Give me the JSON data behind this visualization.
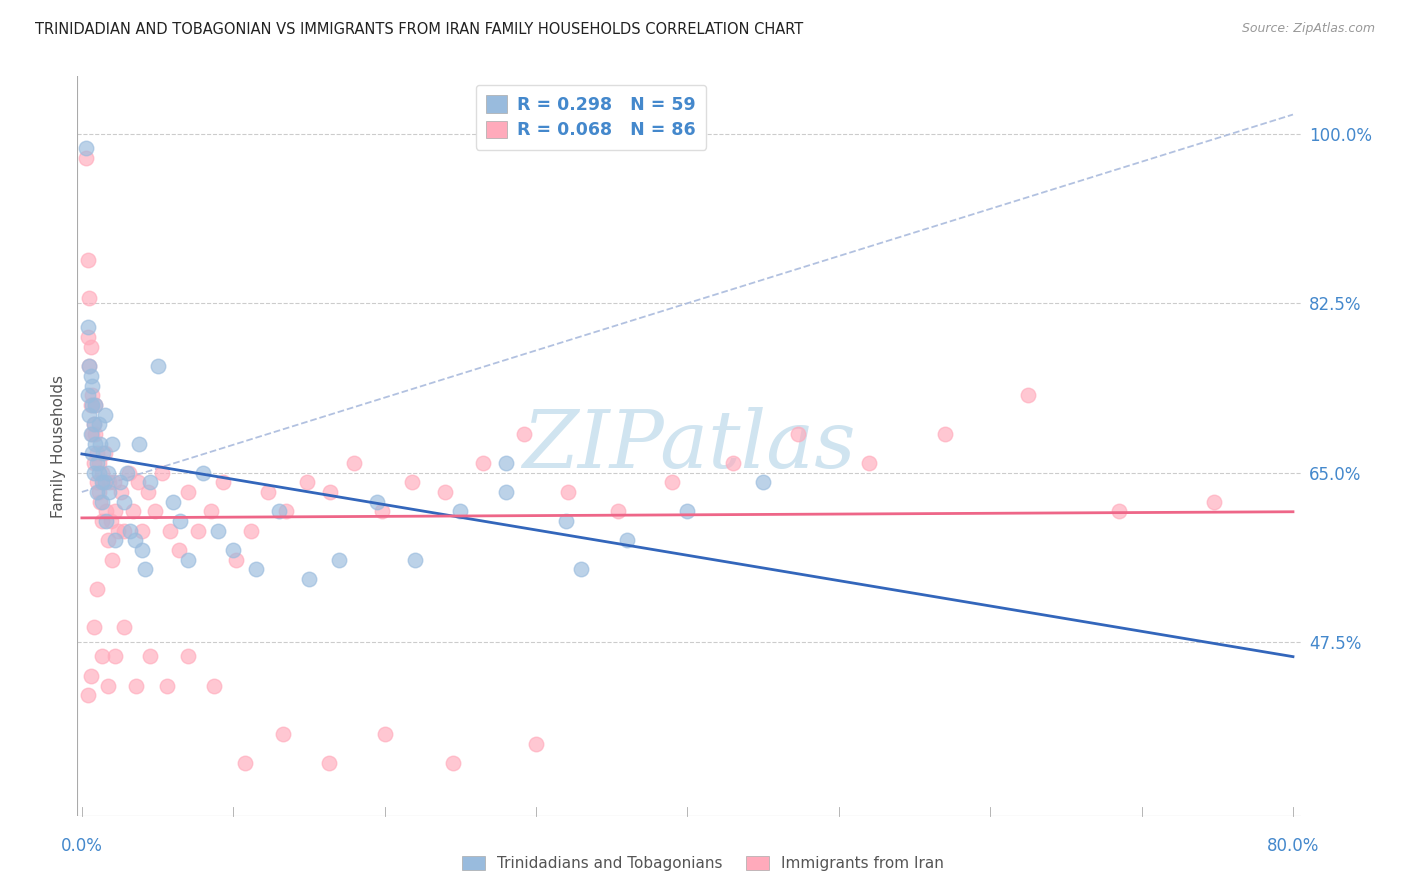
{
  "title": "TRINIDADIAN AND TOBAGONIAN VS IMMIGRANTS FROM IRAN FAMILY HOUSEHOLDS CORRELATION CHART",
  "source": "Source: ZipAtlas.com",
  "ylabel": "Family Households",
  "blue_color": "#99BBDD",
  "pink_color": "#FFAABB",
  "blue_line_color": "#3366BB",
  "pink_line_color": "#EE6688",
  "dashed_line_color": "#AABBDD",
  "background_color": "#FFFFFF",
  "tick_color": "#4488CC",
  "label_color": "#555555",
  "watermark_color": "#D0E4F0",
  "watermark": "ZIPatlas",
  "blue_r": 0.298,
  "blue_n": 59,
  "pink_r": 0.068,
  "pink_n": 86,
  "xlim_min": -0.003,
  "xlim_max": 0.805,
  "ylim_min": 0.295,
  "ylim_max": 1.06,
  "y_tick_positions": [
    0.475,
    0.65,
    0.825,
    1.0
  ],
  "y_tick_labels": [
    "47.5%",
    "65.0%",
    "82.5%",
    "100.0%"
  ],
  "bottom_legend_blue": "Trinidadians and Tobagonians",
  "bottom_legend_pink": "Immigrants from Iran",
  "blue_x": [
    0.003,
    0.004,
    0.004,
    0.005,
    0.005,
    0.006,
    0.006,
    0.007,
    0.007,
    0.007,
    0.008,
    0.008,
    0.009,
    0.009,
    0.01,
    0.01,
    0.011,
    0.011,
    0.012,
    0.013,
    0.013,
    0.014,
    0.015,
    0.015,
    0.016,
    0.017,
    0.018,
    0.02,
    0.022,
    0.025,
    0.028,
    0.03,
    0.032,
    0.035,
    0.038,
    0.04,
    0.042,
    0.045,
    0.05,
    0.06,
    0.065,
    0.07,
    0.08,
    0.09,
    0.1,
    0.115,
    0.13,
    0.15,
    0.17,
    0.195,
    0.22,
    0.25,
    0.28,
    0.32,
    0.36,
    0.4,
    0.45,
    0.33,
    0.28
  ],
  "blue_y": [
    0.985,
    0.73,
    0.8,
    0.76,
    0.71,
    0.75,
    0.69,
    0.72,
    0.67,
    0.74,
    0.7,
    0.65,
    0.68,
    0.72,
    0.66,
    0.63,
    0.7,
    0.65,
    0.68,
    0.64,
    0.62,
    0.67,
    0.71,
    0.64,
    0.6,
    0.65,
    0.63,
    0.68,
    0.58,
    0.64,
    0.62,
    0.65,
    0.59,
    0.58,
    0.68,
    0.57,
    0.55,
    0.64,
    0.76,
    0.62,
    0.6,
    0.56,
    0.65,
    0.59,
    0.57,
    0.55,
    0.61,
    0.54,
    0.56,
    0.62,
    0.56,
    0.61,
    0.66,
    0.6,
    0.58,
    0.61,
    0.64,
    0.55,
    0.63
  ],
  "pink_x": [
    0.003,
    0.004,
    0.004,
    0.005,
    0.005,
    0.006,
    0.006,
    0.007,
    0.007,
    0.008,
    0.008,
    0.009,
    0.009,
    0.01,
    0.01,
    0.011,
    0.011,
    0.012,
    0.013,
    0.013,
    0.014,
    0.015,
    0.016,
    0.017,
    0.018,
    0.019,
    0.02,
    0.021,
    0.022,
    0.024,
    0.026,
    0.028,
    0.031,
    0.034,
    0.037,
    0.04,
    0.044,
    0.048,
    0.053,
    0.058,
    0.064,
    0.07,
    0.077,
    0.085,
    0.093,
    0.102,
    0.112,
    0.123,
    0.135,
    0.149,
    0.164,
    0.18,
    0.198,
    0.218,
    0.24,
    0.265,
    0.292,
    0.321,
    0.354,
    0.39,
    0.43,
    0.473,
    0.52,
    0.57,
    0.625,
    0.685,
    0.748,
    0.004,
    0.006,
    0.008,
    0.01,
    0.013,
    0.017,
    0.022,
    0.028,
    0.036,
    0.045,
    0.056,
    0.07,
    0.087,
    0.108,
    0.133,
    0.163,
    0.2,
    0.245,
    0.3
  ],
  "pink_y": [
    0.975,
    0.87,
    0.79,
    0.83,
    0.76,
    0.78,
    0.72,
    0.73,
    0.69,
    0.7,
    0.66,
    0.69,
    0.72,
    0.64,
    0.67,
    0.63,
    0.66,
    0.62,
    0.65,
    0.6,
    0.64,
    0.67,
    0.61,
    0.58,
    0.64,
    0.6,
    0.56,
    0.64,
    0.61,
    0.59,
    0.63,
    0.59,
    0.65,
    0.61,
    0.64,
    0.59,
    0.63,
    0.61,
    0.65,
    0.59,
    0.57,
    0.63,
    0.59,
    0.61,
    0.64,
    0.56,
    0.59,
    0.63,
    0.61,
    0.64,
    0.63,
    0.66,
    0.61,
    0.64,
    0.63,
    0.66,
    0.69,
    0.63,
    0.61,
    0.64,
    0.66,
    0.69,
    0.66,
    0.69,
    0.73,
    0.61,
    0.62,
    0.42,
    0.44,
    0.49,
    0.53,
    0.46,
    0.43,
    0.46,
    0.49,
    0.43,
    0.46,
    0.43,
    0.46,
    0.43,
    0.35,
    0.38,
    0.35,
    0.38,
    0.35,
    0.37
  ]
}
